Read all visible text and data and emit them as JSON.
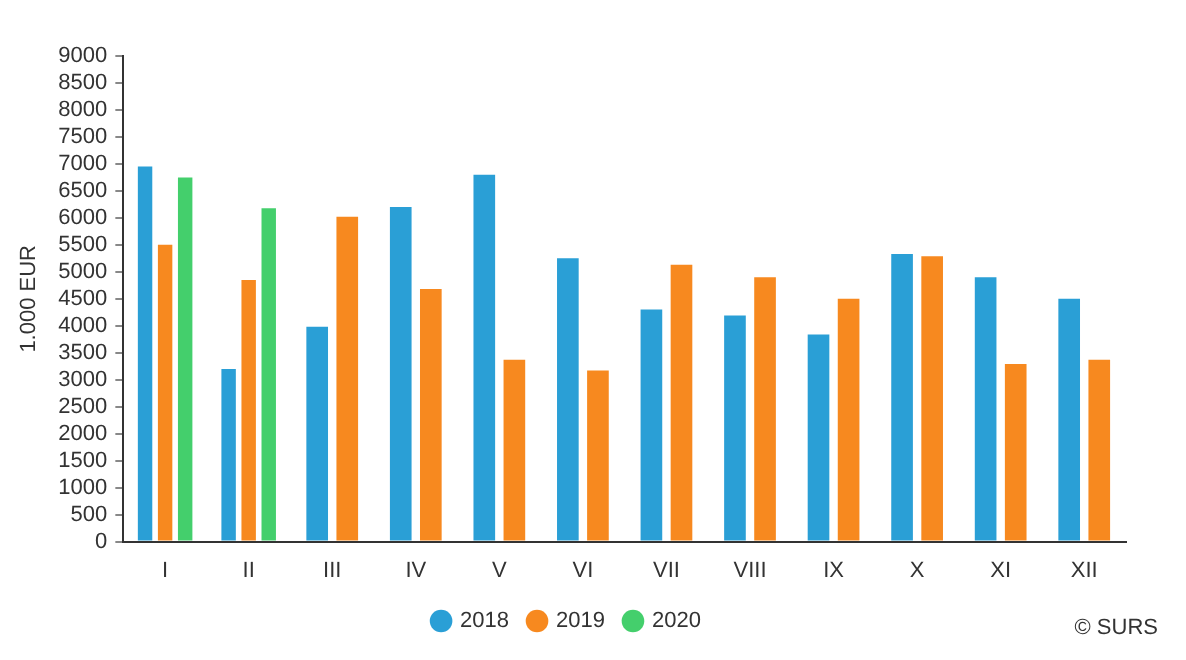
{
  "chart_data": {
    "type": "bar",
    "ylabel": "1.000 EUR",
    "categories": [
      "I",
      "II",
      "III",
      "IV",
      "V",
      "VI",
      "VII",
      "VIII",
      "IX",
      "X",
      "XI",
      "XII"
    ],
    "series": [
      {
        "name": "2018",
        "color": "#2a9fd6",
        "values": [
          6950,
          3200,
          3980,
          6200,
          6800,
          5250,
          4300,
          4190,
          3840,
          5330,
          4900,
          4500
        ]
      },
      {
        "name": "2019",
        "color": "#f7891f",
        "values": [
          5500,
          4850,
          6020,
          4680,
          3370,
          3170,
          5130,
          4900,
          4500,
          5290,
          3290,
          3370
        ]
      },
      {
        "name": "2020",
        "color": "#44cf6c",
        "values": [
          6750,
          6180,
          null,
          null,
          null,
          null,
          null,
          null,
          null,
          null,
          null,
          null
        ]
      }
    ],
    "ylim": [
      0,
      9000
    ],
    "yticks": [
      0,
      500,
      1000,
      1500,
      2000,
      2500,
      3000,
      3500,
      4000,
      4500,
      5000,
      5500,
      6000,
      6500,
      7000,
      7500,
      8000,
      8500,
      9000
    ],
    "grid": false,
    "legend": "bottom",
    "annotations": [
      "© SURS"
    ]
  }
}
